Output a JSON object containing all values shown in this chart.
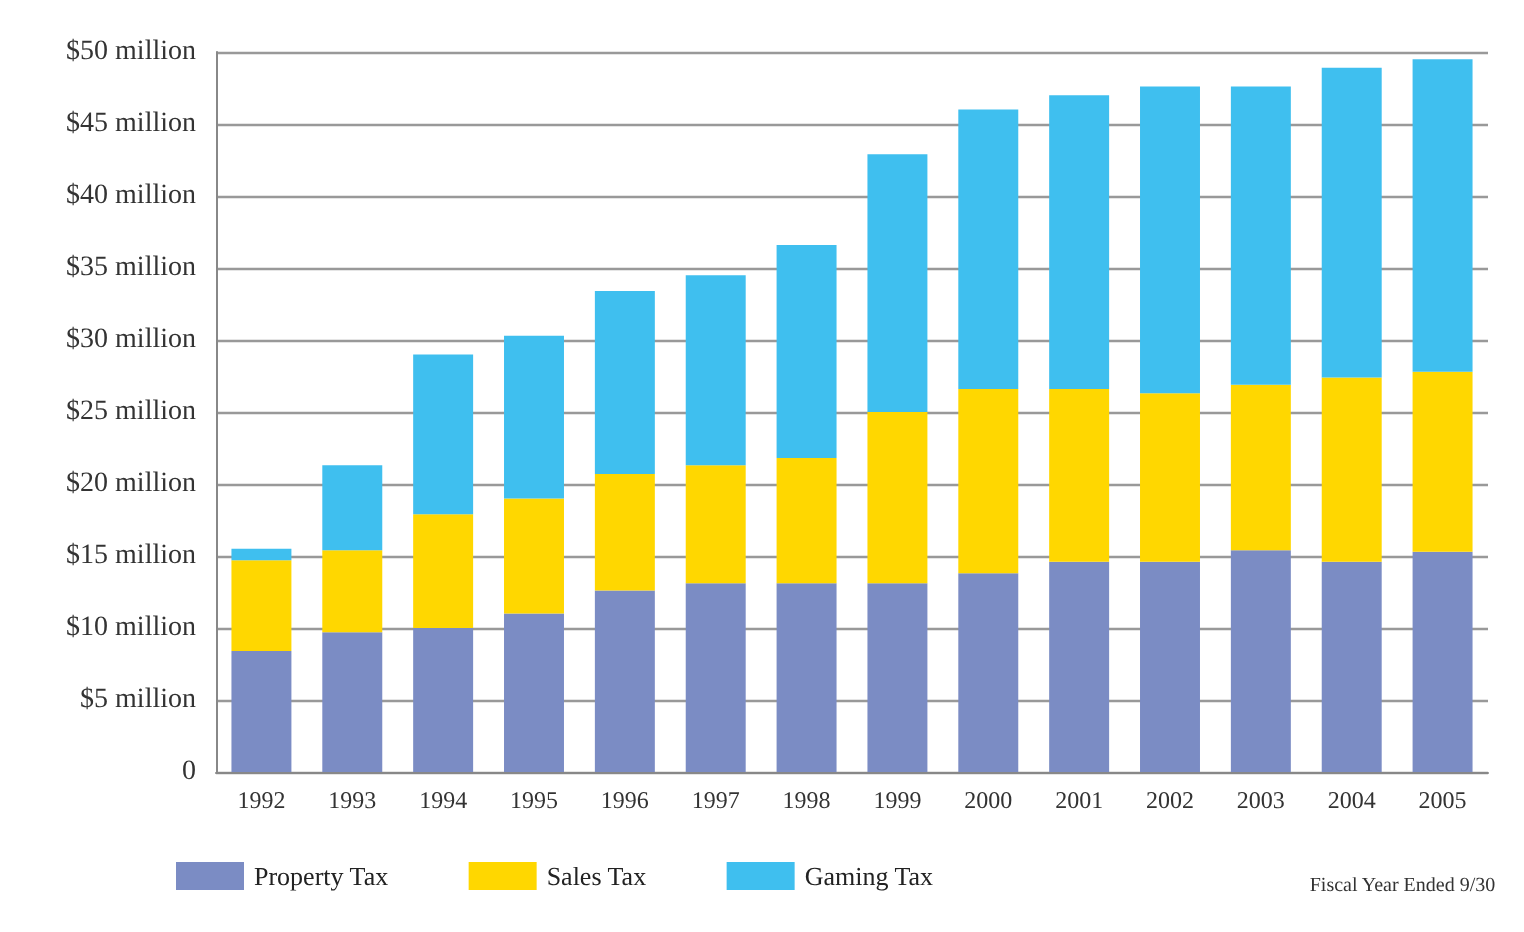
{
  "chart_data": {
    "type": "bar",
    "stacked": true,
    "categories": [
      "1992",
      "1993",
      "1994",
      "1995",
      "1996",
      "1997",
      "1998",
      "1999",
      "2000",
      "2001",
      "2002",
      "2003",
      "2004",
      "2005"
    ],
    "series": [
      {
        "name": "Property Tax",
        "color": "#7b8cc4",
        "values": [
          8.4,
          9.7,
          10.0,
          11.0,
          12.6,
          13.1,
          13.1,
          13.1,
          13.8,
          14.6,
          14.6,
          15.4,
          14.6,
          15.3
        ]
      },
      {
        "name": "Sales Tax",
        "color": "#ffd700",
        "values": [
          6.3,
          5.7,
          7.9,
          8.0,
          8.1,
          8.2,
          8.7,
          11.9,
          12.8,
          12.0,
          11.7,
          11.5,
          12.8,
          12.5
        ]
      },
      {
        "name": "Gaming Tax",
        "color": "#3fbfef",
        "values": [
          0.8,
          5.9,
          11.1,
          11.3,
          12.7,
          13.2,
          14.8,
          17.9,
          19.4,
          20.4,
          21.3,
          20.7,
          21.5,
          21.7
        ]
      }
    ],
    "ylim": [
      0,
      50
    ],
    "yticks": [
      0,
      {
        "value": 5,
        "label": "$5 million"
      },
      {
        "value": 10,
        "label": "$10 million"
      },
      {
        "value": 15,
        "label": "$15 million"
      },
      {
        "value": 20,
        "label": "$20 million"
      },
      {
        "value": 25,
        "label": "$25 million"
      },
      {
        "value": 30,
        "label": "$30 million"
      },
      {
        "value": 35,
        "label": "$35 million"
      },
      {
        "value": 40,
        "label": "$40 million"
      },
      {
        "value": 45,
        "label": "$45 million"
      },
      {
        "value": 50,
        "label": "$50 million"
      }
    ],
    "grid": "y",
    "legend": "bottom left",
    "annotations": [
      "Fiscal Year Ended 9/30"
    ]
  }
}
